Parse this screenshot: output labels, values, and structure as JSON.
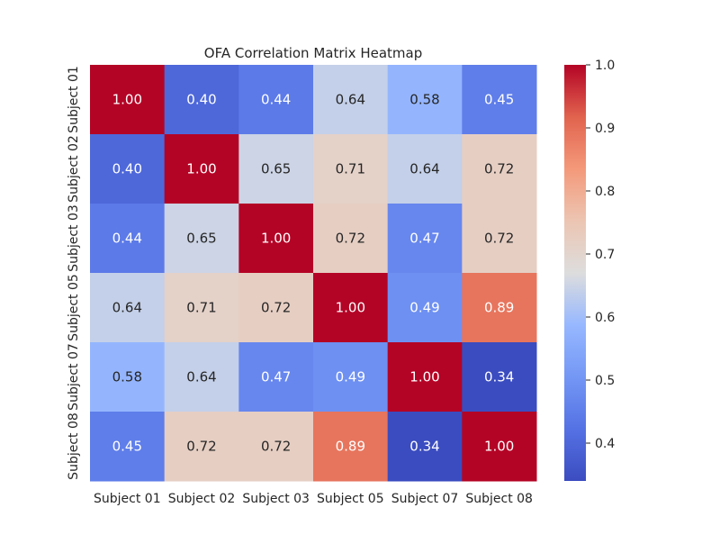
{
  "chart_data": {
    "type": "heatmap",
    "title": "OFA Correlation Matrix Heatmap",
    "xlabel": "",
    "ylabel": "",
    "x_categories": [
      "Subject 01",
      "Subject 02",
      "Subject 03",
      "Subject 05",
      "Subject 07",
      "Subject 08"
    ],
    "y_categories": [
      "Subject 01",
      "Subject 02",
      "Subject 03",
      "Subject 05",
      "Subject 07",
      "Subject 08"
    ],
    "values": [
      [
        1.0,
        0.4,
        0.44,
        0.64,
        0.58,
        0.45
      ],
      [
        0.4,
        1.0,
        0.65,
        0.71,
        0.64,
        0.72
      ],
      [
        0.44,
        0.65,
        1.0,
        0.72,
        0.47,
        0.72
      ],
      [
        0.64,
        0.71,
        0.72,
        1.0,
        0.49,
        0.89
      ],
      [
        0.58,
        0.64,
        0.47,
        0.49,
        1.0,
        0.34
      ],
      [
        0.45,
        0.72,
        0.72,
        0.89,
        0.34,
        1.0
      ]
    ],
    "value_format": "0.00",
    "colormap": "coolwarm",
    "colorbar": {
      "range": [
        0.34,
        1.0
      ],
      "ticks": [
        0.4,
        0.5,
        0.6,
        0.7,
        0.8,
        0.9,
        1.0
      ],
      "tick_labels": [
        "0.4",
        "0.5",
        "0.6",
        "0.7",
        "0.8",
        "0.9",
        "1.0"
      ]
    },
    "annotations": true,
    "grid": false,
    "colors": {
      "low": "#3b4cc0",
      "mid": "#dddddd",
      "high": "#b40426",
      "text_dark": "#262626",
      "text_light": "#ffffff"
    }
  }
}
